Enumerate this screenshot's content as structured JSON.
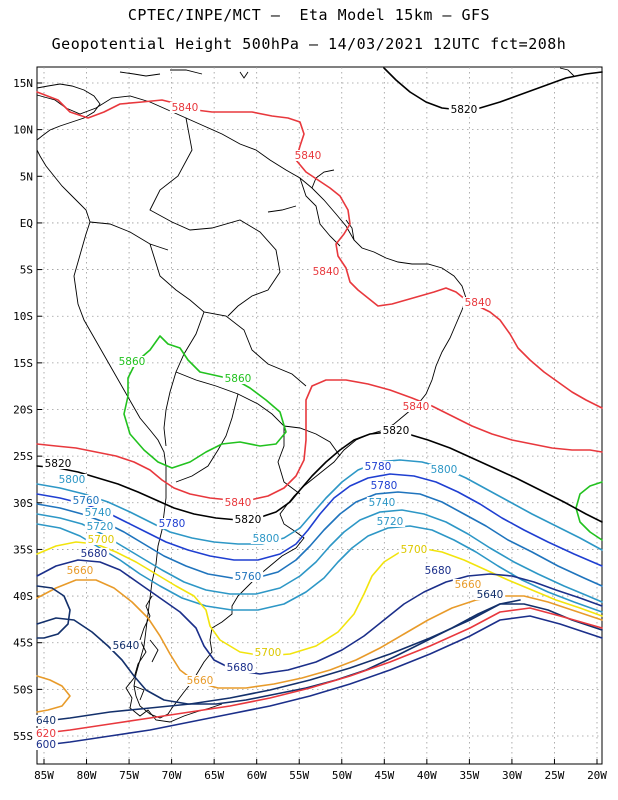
{
  "title": {
    "line1": "CPTEC/INPE/MCT –  Eta Model 15km – GFS",
    "line2": "Geopotential Height 500hPa – 14/03/2021 12UTC fct=208h"
  },
  "axes": {
    "lat_labels": [
      "15N",
      "10N",
      "5N",
      "EQ",
      "5S",
      "10S",
      "15S",
      "20S",
      "25S",
      "30S",
      "35S",
      "40S",
      "45S",
      "50S",
      "55S"
    ],
    "lon_labels": [
      "85W",
      "80W",
      "75W",
      "70W",
      "65W",
      "60W",
      "55W",
      "50W",
      "45W",
      "40W",
      "35W",
      "30W",
      "25W",
      "20W"
    ]
  },
  "chart_data": {
    "type": "map",
    "region": "South America",
    "variable": "Geopotential Height 500hPa",
    "lat_range": [
      -58,
      16
    ],
    "lon_range": [
      -86,
      -20
    ],
    "grid": true,
    "levels": [
      {
        "value": 5600,
        "color": "#1b2f8a"
      },
      {
        "value": 5620,
        "color": "#e8383d"
      },
      {
        "value": 5640,
        "color": "#13306b"
      },
      {
        "value": 5660,
        "color": "#e89b2a"
      },
      {
        "value": 5680,
        "color": "#1b2f8a"
      },
      {
        "value": 5700,
        "color": "#f2e40d"
      },
      {
        "value": 5720,
        "color": "#2d97c6"
      },
      {
        "value": 5740,
        "color": "#2d97c6"
      },
      {
        "value": 5760,
        "color": "#1f74bd"
      },
      {
        "value": 5780,
        "color": "#1f3fd1"
      },
      {
        "value": 5800,
        "color": "#2d97c6"
      },
      {
        "value": 5820,
        "color": "#000000"
      },
      {
        "value": 5840,
        "color": "#e8383d"
      },
      {
        "value": 5860,
        "color": "#22c21f"
      }
    ],
    "contour_labels": [
      {
        "text": "5840"
      },
      {
        "text": "5840"
      },
      {
        "text": "5840"
      },
      {
        "text": "5840"
      },
      {
        "text": "5840"
      },
      {
        "text": "5840"
      },
      {
        "text": "5820"
      },
      {
        "text": "5820"
      },
      {
        "text": "5820"
      },
      {
        "text": "5820"
      },
      {
        "text": "5860"
      },
      {
        "text": "5860"
      },
      {
        "text": "5800"
      },
      {
        "text": "5800"
      },
      {
        "text": "5800"
      },
      {
        "text": "5780"
      },
      {
        "text": "5780"
      },
      {
        "text": "5780"
      },
      {
        "text": "5760"
      },
      {
        "text": "5760"
      },
      {
        "text": "5740"
      },
      {
        "text": "5740"
      },
      {
        "text": "5720"
      },
      {
        "text": "5720"
      },
      {
        "text": "5700"
      },
      {
        "text": "5700"
      },
      {
        "text": "5700"
      },
      {
        "text": "5680"
      },
      {
        "text": "5680"
      },
      {
        "text": "5680"
      },
      {
        "text": "5660"
      },
      {
        "text": "5660"
      },
      {
        "text": "5660"
      },
      {
        "text": "5640"
      },
      {
        "text": "5640"
      },
      {
        "text": "640"
      },
      {
        "text": "620"
      },
      {
        "text": "600"
      }
    ]
  }
}
